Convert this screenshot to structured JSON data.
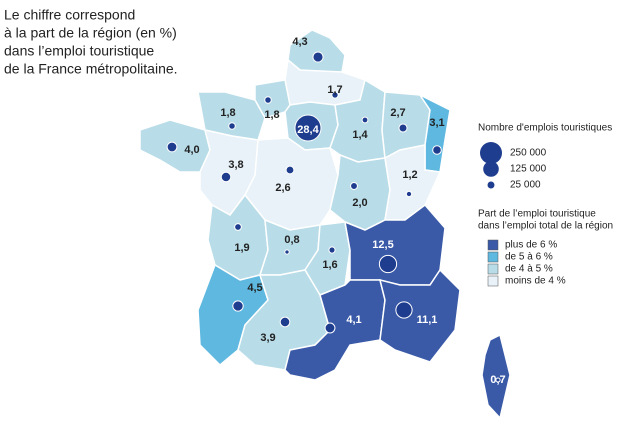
{
  "title_lines": [
    "Le chiffre correspond",
    "à la part de la région (en %)",
    "dans l’emploi touristique",
    "de la France métropolitaine."
  ],
  "regions": [
    {
      "label": "4,3",
      "color": "#b8dce8"
    },
    {
      "label": "1,7",
      "color": "#e8f2f8"
    },
    {
      "label": "1,8",
      "color": "#b8dce8"
    },
    {
      "label": "1,8",
      "color": "#b8dce8"
    },
    {
      "label": "28,4",
      "color": "#b8dce8"
    },
    {
      "label": "1,4",
      "color": "#b8dce8"
    },
    {
      "label": "2,7",
      "color": "#b8dce8"
    },
    {
      "label": "3,1",
      "color": "#5fb8e0"
    },
    {
      "label": "4,0",
      "color": "#b8dce8"
    },
    {
      "label": "3,8",
      "color": "#e8f2f8"
    },
    {
      "label": "2,6",
      "color": "#e8f2f8"
    },
    {
      "label": "2,0",
      "color": "#b8dce8"
    },
    {
      "label": "1,2",
      "color": "#e8f2f8"
    },
    {
      "label": "1,9",
      "color": "#b8dce8"
    },
    {
      "label": "0,8",
      "color": "#b8dce8"
    },
    {
      "label": "1,6",
      "color": "#b8dce8"
    },
    {
      "label": "12,5",
      "color": "#3a5aa8"
    },
    {
      "label": "4,5",
      "color": "#5fb8e0"
    },
    {
      "label": "3,9",
      "color": "#b8dce8"
    },
    {
      "label": "4,1",
      "color": "#3a5aa8"
    },
    {
      "label": "11,1",
      "color": "#3a5aa8"
    },
    {
      "label": "0,7",
      "color": "#3a5aa8"
    }
  ],
  "size_legend": {
    "title": "Nombre d'emplois touristiques",
    "items": [
      "250 000",
      "125 000",
      "25 000"
    ]
  },
  "color_legend": {
    "title_lines": [
      "Part de l’emploi touristique",
      "dans l’emploi total de la région"
    ],
    "items": [
      {
        "label": "plus de 6 %",
        "color": "#3a5aa8"
      },
      {
        "label": "de 5 à  6 %",
        "color": "#5fb8e0"
      },
      {
        "label": "de 4 à 5 %",
        "color": "#b8dce8"
      },
      {
        "label": "moins de 4 %",
        "color": "#e8f2f8"
      }
    ]
  }
}
